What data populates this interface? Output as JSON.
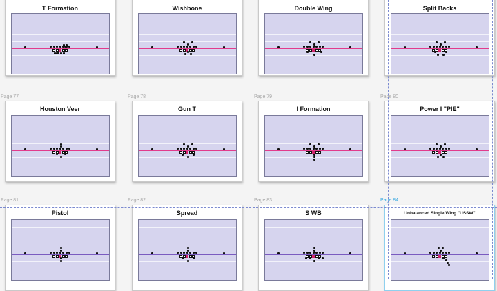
{
  "pages": [
    {
      "title": "T Formation",
      "label": "",
      "backfield": [
        [
          4,
          -7
        ],
        [
          8,
          -7
        ],
        [
          6,
          -5
        ],
        [
          -4,
          7
        ],
        [
          -6,
          7
        ],
        [
          -9,
          7
        ],
        [
          0,
          7
        ],
        [
          4,
          7
        ]
      ]
    },
    {
      "title": "Wishbone",
      "label": "",
      "backfield": [
        [
          -6,
          -11
        ],
        [
          6,
          -11
        ],
        [
          0,
          -8
        ],
        [
          0,
          4
        ],
        [
          -4,
          8
        ],
        [
          4,
          8
        ]
      ]
    },
    {
      "title": "Double Wing",
      "label": "",
      "backfield": [
        [
          -6,
          -11
        ],
        [
          6,
          -11
        ],
        [
          0,
          -8
        ],
        [
          -10,
          4
        ],
        [
          10,
          4
        ],
        [
          0,
          9
        ]
      ]
    },
    {
      "title": "Split Backs",
      "label": "",
      "backfield": [
        [
          -6,
          -11
        ],
        [
          6,
          -11
        ],
        [
          0,
          -8
        ],
        [
          -8,
          4
        ],
        [
          8,
          4
        ],
        [
          -4,
          9
        ],
        [
          4,
          9
        ]
      ]
    },
    {
      "title": "Houston Veer",
      "label": "Page 77",
      "backfield": [
        [
          0,
          -11
        ],
        [
          0,
          -8
        ],
        [
          -6,
          4
        ],
        [
          6,
          4
        ],
        [
          0,
          9
        ]
      ]
    },
    {
      "title": "Gun T",
      "label": "Page 78",
      "backfield": [
        [
          -6,
          -11
        ],
        [
          6,
          -11
        ],
        [
          0,
          -8
        ],
        [
          -8,
          5
        ],
        [
          8,
          5
        ],
        [
          0,
          9
        ]
      ]
    },
    {
      "title": "I Formation",
      "label": "Page 79",
      "backfield": [
        [
          -6,
          -11
        ],
        [
          6,
          -11
        ],
        [
          0,
          -8
        ],
        [
          0,
          5
        ],
        [
          0,
          9
        ],
        [
          0,
          13
        ]
      ]
    },
    {
      "title": "Power I \"PIE\"",
      "label": "Page 80",
      "backfield": [
        [
          -6,
          -11
        ],
        [
          6,
          -11
        ],
        [
          0,
          -8
        ],
        [
          0,
          5
        ],
        [
          -4,
          9
        ],
        [
          4,
          9
        ]
      ]
    },
    {
      "title": "Pistol",
      "label": "Page 81",
      "backfield": [
        [
          0,
          -12
        ],
        [
          0,
          -8
        ],
        [
          0,
          4
        ],
        [
          0,
          9
        ]
      ]
    },
    {
      "title": "Spread",
      "label": "Page 82",
      "backfield": [
        [
          0,
          -12
        ],
        [
          0,
          -8
        ],
        [
          -8,
          4
        ],
        [
          8,
          4
        ],
        [
          0,
          9
        ]
      ]
    },
    {
      "title": "S WB",
      "label": "Page 83",
      "backfield": [
        [
          0,
          -12
        ],
        [
          0,
          -8
        ],
        [
          -6,
          4
        ],
        [
          6,
          4
        ],
        [
          0,
          9
        ],
        [
          -12,
          4
        ],
        [
          12,
          4
        ]
      ]
    },
    {
      "title": "Unbalanced Single Wing \"USSW\"",
      "label": "Page 84",
      "backfield": [
        [
          -3,
          -12
        ],
        [
          3,
          -12
        ],
        [
          0,
          -8
        ],
        [
          4,
          4
        ],
        [
          8,
          8
        ],
        [
          10,
          12
        ],
        [
          12,
          16
        ]
      ]
    }
  ]
}
